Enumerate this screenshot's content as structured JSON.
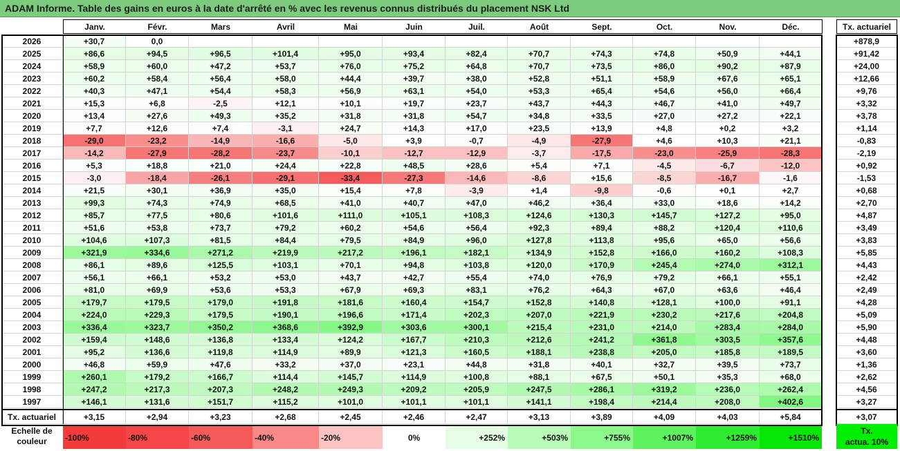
{
  "title": "ADAM Informe. Table des gains en euros à la date d'arrêté en % avec les revenus connus distribués du placement NSK Ltd",
  "chart_data": {
    "type": "table",
    "months": [
      "Janv.",
      "Févr.",
      "Mars",
      "Avril",
      "Mai",
      "Juin",
      "Juil.",
      "Août",
      "Sept.",
      "Oct.",
      "Nov.",
      "Déc."
    ],
    "tx_header": "Tx. actuariel",
    "rows": [
      {
        "year": "2026",
        "values": [
          "+30,7",
          "0,0",
          "",
          "",
          "",
          "",
          "",
          "",
          "",
          "",
          "",
          ""
        ],
        "tx": "+878,9"
      },
      {
        "year": "2025",
        "values": [
          "+86,6",
          "+94,5",
          "+96,5",
          "+101,4",
          "+95,0",
          "+93,4",
          "+82,4",
          "+70,7",
          "+74,3",
          "+74,8",
          "+50,9",
          "+44,1"
        ],
        "tx": "+91,42"
      },
      {
        "year": "2024",
        "values": [
          "+58,9",
          "+60,0",
          "+47,2",
          "+53,7",
          "+76,0",
          "+75,2",
          "+64,8",
          "+70,7",
          "+73,5",
          "+86,0",
          "+90,2",
          "+87,9"
        ],
        "tx": "+24,00"
      },
      {
        "year": "2023",
        "values": [
          "+60,2",
          "+58,4",
          "+56,4",
          "+58,0",
          "+44,4",
          "+39,7",
          "+38,0",
          "+52,8",
          "+51,1",
          "+58,9",
          "+67,6",
          "+65,1"
        ],
        "tx": "+12,66"
      },
      {
        "year": "2022",
        "values": [
          "+40,3",
          "+47,1",
          "+54,4",
          "+58,3",
          "+56,9",
          "+63,1",
          "+54,0",
          "+53,3",
          "+65,4",
          "+54,6",
          "+56,0",
          "+66,4"
        ],
        "tx": "+9,76"
      },
      {
        "year": "2021",
        "values": [
          "+15,3",
          "+6,8",
          "-2,5",
          "+12,1",
          "+10,1",
          "+19,7",
          "+23,7",
          "+43,7",
          "+44,3",
          "+46,7",
          "+41,0",
          "+49,7"
        ],
        "tx": "+3,32"
      },
      {
        "year": "2020",
        "values": [
          "+13,4",
          "+27,6",
          "+49,3",
          "+35,2",
          "+31,8",
          "+31,8",
          "+54,7",
          "+34,8",
          "+33,5",
          "+27,0",
          "+27,2",
          "+22,1"
        ],
        "tx": "+3,78"
      },
      {
        "year": "2019",
        "values": [
          "+7,7",
          "+12,6",
          "+7,4",
          "-3,1",
          "+24,7",
          "+14,3",
          "+17,0",
          "+23,5",
          "+13,9",
          "+4,8",
          "+0,2",
          "+3,2"
        ],
        "tx": "+1,14"
      },
      {
        "year": "2018",
        "values": [
          "-29,0",
          "-23,2",
          "-14,9",
          "-16,6",
          "-5,0",
          "+3,9",
          "-0,7",
          "-4,9",
          "-27,9",
          "+4,6",
          "+10,3",
          "+21,1"
        ],
        "tx": "-0,83"
      },
      {
        "year": "2017",
        "values": [
          "-14,2",
          "-27,9",
          "-28,2",
          "-23,7",
          "-10,1",
          "-12,7",
          "-12,9",
          "-3,7",
          "-17,5",
          "-23,0",
          "-25,9",
          "-28,3"
        ],
        "tx": "-2,19"
      },
      {
        "year": "2016",
        "values": [
          "+5,3",
          "+18,8",
          "+21,0",
          "+24,4",
          "+22,8",
          "+48,5",
          "+28,6",
          "+5,4",
          "+7,1",
          "-4,5",
          "-6,7",
          "-12,0"
        ],
        "tx": "+0,92"
      },
      {
        "year": "2015",
        "values": [
          "-3,0",
          "-18,4",
          "-26,1",
          "-29,1",
          "-33,4",
          "-27,3",
          "-14,6",
          "-8,6",
          "+15,6",
          "-8,5",
          "-16,7",
          "-1,6"
        ],
        "tx": "-1,53"
      },
      {
        "year": "2014",
        "values": [
          "+21,5",
          "+30,1",
          "+36,9",
          "+35,0",
          "+15,4",
          "+7,8",
          "-3,9",
          "+1,4",
          "-9,8",
          "-0,6",
          "+0,1",
          "+2,7"
        ],
        "tx": "+0,68"
      },
      {
        "year": "2013",
        "values": [
          "+99,3",
          "+74,3",
          "+74,9",
          "+68,5",
          "+41,0",
          "+40,7",
          "+47,0",
          "+46,2",
          "+36,4",
          "+33,0",
          "+18,6",
          "+14,2"
        ],
        "tx": "+2,70"
      },
      {
        "year": "2012",
        "values": [
          "+85,7",
          "+77,5",
          "+80,6",
          "+101,6",
          "+111,0",
          "+105,1",
          "+108,3",
          "+124,6",
          "+130,3",
          "+145,7",
          "+127,2",
          "+95,0"
        ],
        "tx": "+4,87"
      },
      {
        "year": "2011",
        "values": [
          "+51,6",
          "+53,8",
          "+73,7",
          "+79,2",
          "+60,2",
          "+54,6",
          "+56,4",
          "+92,3",
          "+89,4",
          "+88,2",
          "+120,4",
          "+110,6"
        ],
        "tx": "+3,49"
      },
      {
        "year": "2010",
        "values": [
          "+104,6",
          "+107,3",
          "+81,5",
          "+84,4",
          "+79,5",
          "+84,9",
          "+96,0",
          "+127,8",
          "+113,8",
          "+95,6",
          "+65,0",
          "+56,6"
        ],
        "tx": "+3,83"
      },
      {
        "year": "2009",
        "values": [
          "+321,9",
          "+334,6",
          "+271,2",
          "+219,9",
          "+217,2",
          "+196,1",
          "+182,1",
          "+134,9",
          "+152,8",
          "+166,0",
          "+160,2",
          "+108,3"
        ],
        "tx": "+5,85"
      },
      {
        "year": "2008",
        "values": [
          "+86,1",
          "+89,6",
          "+125,5",
          "+103,1",
          "+70,1",
          "+94,8",
          "+103,8",
          "+120,0",
          "+170,9",
          "+245,4",
          "+274,0",
          "+312,1"
        ],
        "tx": "+4,43"
      },
      {
        "year": "2007",
        "values": [
          "+56,1",
          "+66,1",
          "+53,2",
          "+53,0",
          "+43,7",
          "+42,7",
          "+55,4",
          "+74,0",
          "+76,9",
          "+79,2",
          "+66,1",
          "+55,1"
        ],
        "tx": "+2,42"
      },
      {
        "year": "2006",
        "values": [
          "+81,0",
          "+69,9",
          "+53,6",
          "+53,3",
          "+67,9",
          "+69,3",
          "+83,1",
          "+76,2",
          "+64,3",
          "+67,0",
          "+63,6",
          "+46,4"
        ],
        "tx": "+2,49"
      },
      {
        "year": "2005",
        "values": [
          "+179,7",
          "+179,5",
          "+179,0",
          "+191,8",
          "+181,6",
          "+160,4",
          "+154,7",
          "+152,8",
          "+140,8",
          "+128,1",
          "+100,0",
          "+91,1"
        ],
        "tx": "+4,28"
      },
      {
        "year": "2004",
        "values": [
          "+224,0",
          "+229,3",
          "+179,5",
          "+190,1",
          "+196,6",
          "+171,4",
          "+202,3",
          "+207,0",
          "+221,9",
          "+230,2",
          "+217,6",
          "+204,8"
        ],
        "tx": "+5,09"
      },
      {
        "year": "2003",
        "values": [
          "+336,4",
          "+323,7",
          "+350,2",
          "+368,6",
          "+392,9",
          "+303,6",
          "+300,1",
          "+215,4",
          "+231,0",
          "+214,0",
          "+283,4",
          "+284,0"
        ],
        "tx": "+5,90"
      },
      {
        "year": "2002",
        "values": [
          "+159,4",
          "+148,6",
          "+136,8",
          "+133,4",
          "+124,2",
          "+167,7",
          "+210,3",
          "+212,6",
          "+241,2",
          "+361,8",
          "+303,5",
          "+357,6"
        ],
        "tx": "+4,48"
      },
      {
        "year": "2001",
        "values": [
          "+95,2",
          "+136,6",
          "+119,8",
          "+114,9",
          "+89,9",
          "+121,3",
          "+160,5",
          "+188,1",
          "+238,8",
          "+205,0",
          "+185,8",
          "+189,5"
        ],
        "tx": "+3,60"
      },
      {
        "year": "2000",
        "values": [
          "+46,8",
          "+59,9",
          "+47,6",
          "+33,2",
          "+37,0",
          "+23,1",
          "+44,8",
          "+31,8",
          "+40,1",
          "+32,7",
          "+39,5",
          "+73,7"
        ],
        "tx": "+1,36"
      },
      {
        "year": "1999",
        "values": [
          "+260,1",
          "+179,2",
          "+166,7",
          "+114,4",
          "+145,7",
          "+114,9",
          "+100,8",
          "+88,1",
          "+67,5",
          "+50,1",
          "+35,3",
          "+68,0"
        ],
        "tx": "+2,62"
      },
      {
        "year": "1998",
        "values": [
          "+247,2",
          "+217,3",
          "+207,3",
          "+248,2",
          "+249,3",
          "+209,2",
          "+205,9",
          "+247,5",
          "+286,1",
          "+319,2",
          "+236,0",
          "+262,4"
        ],
        "tx": "+4,56"
      },
      {
        "year": "1997",
        "values": [
          "+146,1",
          "+131,6",
          "+151,7",
          "+115,2",
          "+101,0",
          "+101,1",
          "+101,1",
          "+141,1",
          "+198,4",
          "+214,4",
          "+208,0",
          "+402,6"
        ],
        "tx": "+3,27"
      }
    ],
    "footer": {
      "label": "Tx. actuariel",
      "values": [
        "+3,15",
        "+2,94",
        "+3,23",
        "+2,68",
        "+2,45",
        "+2,46",
        "+2,47",
        "+3,13",
        "+3,89",
        "+4,09",
        "+4,03",
        "+5,84"
      ],
      "tx": "+3,07"
    },
    "color_scale": {
      "label_line1": "Echelle de",
      "label_line2": "couleur",
      "items": [
        {
          "label": "-100%",
          "color": "#f23b3b"
        },
        {
          "label": "-80%",
          "color": "#f44646"
        },
        {
          "label": "-60%",
          "color": "#f55a5a"
        },
        {
          "label": "-40%",
          "color": "#f98888"
        },
        {
          "label": "-20%",
          "color": "#fbc3c3"
        },
        {
          "label": "0%",
          "color": "#ffffff"
        },
        {
          "label": "+252%",
          "color": "#e5fde5"
        },
        {
          "label": "+503%",
          "color": "#b8fbb8"
        },
        {
          "label": "+755%",
          "color": "#8cf88c"
        },
        {
          "label": "+1007%",
          "color": "#5ef25e"
        },
        {
          "label": "+1259%",
          "color": "#30ec30"
        },
        {
          "label": "+1510%",
          "color": "#04e604"
        }
      ],
      "tx_label_line1": "Tx.",
      "tx_label_line2": "actua. 10%",
      "tx_color": "#00ee00"
    }
  }
}
